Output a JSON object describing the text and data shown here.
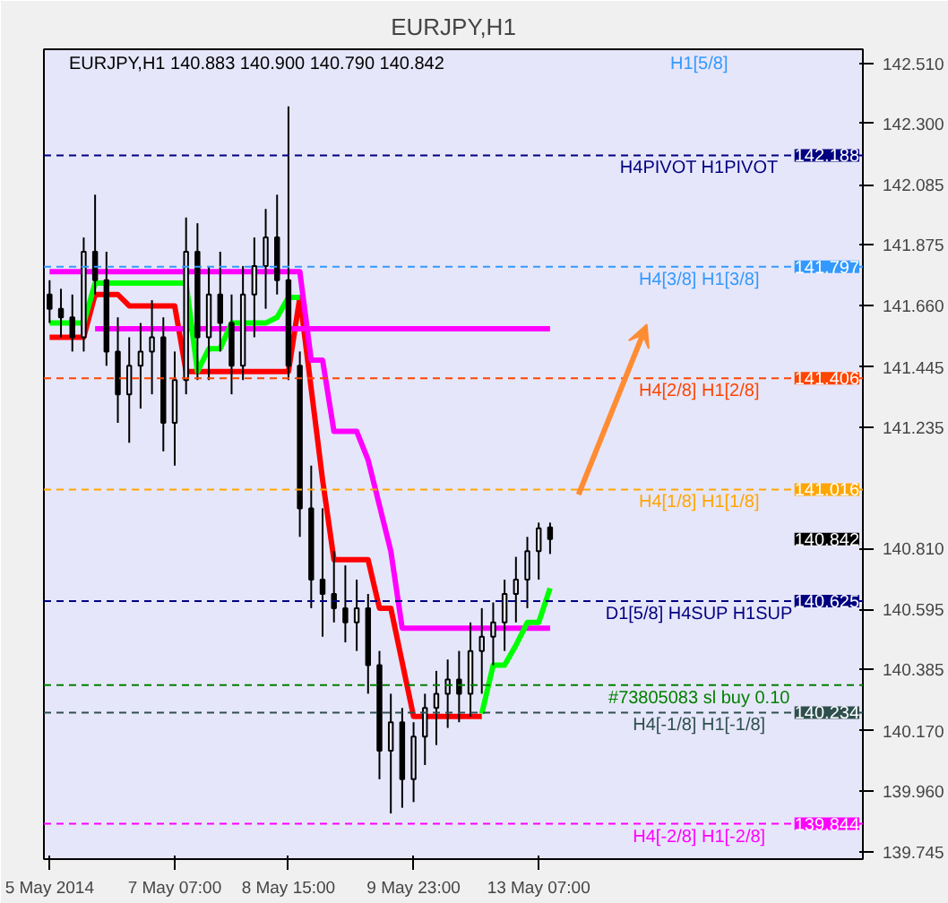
{
  "chart_data": {
    "type": "candlestick",
    "title": "EURJPY,H1",
    "subtitle": "EURJPY,H1  140.883 140.900 140.790 140.842",
    "categories": [
      "5 May 2014",
      null,
      null,
      null,
      null,
      null,
      null,
      null,
      null,
      null,
      null,
      "7 May 07:00",
      null,
      null,
      null,
      null,
      null,
      null,
      null,
      null,
      null,
      "8 May 15:00",
      null,
      null,
      null,
      null,
      null,
      null,
      null,
      null,
      null,
      null,
      "9 May 23:00",
      null,
      null,
      null,
      null,
      null,
      null,
      null,
      null,
      null,
      null,
      "13 May 07:00",
      null
    ],
    "ohlc": [
      [
        141.7,
        141.75,
        141.6,
        141.65
      ],
      [
        141.65,
        141.72,
        141.55,
        141.62
      ],
      [
        141.62,
        141.7,
        141.5,
        141.55
      ],
      [
        141.55,
        141.9,
        141.5,
        141.85
      ],
      [
        141.85,
        142.05,
        141.7,
        141.75
      ],
      [
        141.75,
        141.85,
        141.45,
        141.5
      ],
      [
        141.5,
        141.62,
        141.25,
        141.35
      ],
      [
        141.35,
        141.55,
        141.18,
        141.45
      ],
      [
        141.45,
        141.6,
        141.3,
        141.5
      ],
      [
        141.5,
        141.68,
        141.35,
        141.55
      ],
      [
        141.55,
        141.62,
        141.15,
        141.25
      ],
      [
        141.25,
        141.5,
        141.1,
        141.4
      ],
      [
        141.4,
        141.97,
        141.35,
        141.85
      ],
      [
        141.85,
        141.95,
        141.4,
        141.55
      ],
      [
        141.55,
        141.8,
        141.4,
        141.7
      ],
      [
        141.7,
        141.85,
        141.5,
        141.6
      ],
      [
        141.6,
        141.7,
        141.35,
        141.45
      ],
      [
        141.45,
        141.8,
        141.4,
        141.7
      ],
      [
        141.7,
        141.9,
        141.55,
        141.8
      ],
      [
        141.8,
        142.0,
        141.65,
        141.9
      ],
      [
        141.9,
        142.05,
        141.7,
        141.75
      ],
      [
        141.75,
        142.36,
        141.4,
        141.45
      ],
      [
        141.45,
        141.5,
        140.85,
        140.95
      ],
      [
        140.95,
        141.1,
        140.6,
        140.7
      ],
      [
        140.7,
        140.95,
        140.5,
        140.65
      ],
      [
        140.65,
        140.8,
        140.55,
        140.6
      ],
      [
        140.6,
        140.75,
        140.48,
        140.55
      ],
      [
        140.55,
        140.7,
        140.45,
        140.6
      ],
      [
        140.6,
        140.65,
        140.3,
        140.4
      ],
      [
        140.4,
        140.45,
        140.0,
        140.1
      ],
      [
        140.1,
        140.3,
        139.88,
        140.2
      ],
      [
        140.2,
        140.25,
        139.9,
        140.0
      ],
      [
        140.0,
        140.2,
        139.92,
        140.15
      ],
      [
        140.15,
        140.3,
        140.05,
        140.25
      ],
      [
        140.25,
        140.38,
        140.12,
        140.3
      ],
      [
        140.3,
        140.42,
        140.18,
        140.35
      ],
      [
        140.35,
        140.45,
        140.2,
        140.3
      ],
      [
        140.3,
        140.55,
        140.22,
        140.45
      ],
      [
        140.45,
        140.6,
        140.3,
        140.5
      ],
      [
        140.5,
        140.62,
        140.4,
        140.55
      ],
      [
        140.55,
        140.7,
        140.45,
        140.65
      ],
      [
        140.65,
        140.78,
        140.55,
        140.7
      ],
      [
        140.7,
        140.85,
        140.6,
        140.8
      ],
      [
        140.8,
        140.9,
        140.7,
        140.88
      ],
      [
        140.883,
        140.9,
        140.79,
        140.842
      ]
    ],
    "color": "#000000",
    "series": [
      {
        "type": "line",
        "color": "#ff0000",
        "values": [
          141.55,
          141.55,
          141.55,
          141.55,
          141.7,
          141.7,
          141.7,
          141.66,
          141.66,
          141.66,
          141.66,
          141.66,
          141.43,
          141.43,
          141.43,
          141.43,
          141.43,
          141.43,
          141.43,
          141.43,
          141.43,
          141.43,
          141.69,
          141.37,
          141.05,
          140.77,
          140.77,
          140.77,
          140.77,
          140.6,
          140.6,
          140.41,
          140.22,
          140.22,
          140.22,
          140.22,
          140.22,
          140.22,
          140.22,
          null,
          null,
          null,
          null,
          null,
          null
        ]
      },
      {
        "type": "line",
        "color": "#ff00ff",
        "values": [
          141.78,
          141.78,
          141.78,
          141.78,
          141.78,
          141.78,
          141.78,
          141.78,
          141.78,
          141.78,
          141.78,
          141.78,
          141.78,
          141.78,
          141.78,
          141.78,
          141.78,
          141.78,
          141.78,
          141.78,
          141.78,
          141.78,
          141.78,
          141.47,
          141.47,
          141.22,
          141.22,
          141.22,
          141.12,
          140.96,
          140.8,
          140.53,
          140.53,
          140.53,
          140.53,
          140.53,
          140.53,
          140.53,
          140.53,
          140.53,
          140.53,
          140.53,
          140.53,
          140.53,
          140.53
        ]
      },
      {
        "type": "line",
        "color": "#ff00ff",
        "values": [
          null,
          null,
          null,
          null,
          141.58,
          141.58,
          141.58,
          141.58,
          141.58,
          141.58,
          141.58,
          141.58,
          141.58,
          141.58,
          141.58,
          141.58,
          141.58,
          141.58,
          141.58,
          141.58,
          141.58,
          141.58,
          141.58,
          141.58,
          141.58,
          141.58,
          141.58,
          141.58,
          141.58,
          141.58,
          141.58,
          141.58,
          141.58,
          141.58,
          141.58,
          141.58,
          141.58,
          141.58,
          141.58,
          141.58,
          141.58,
          141.58,
          141.58,
          141.58,
          141.58
        ]
      },
      {
        "type": "line",
        "color": "#00ff00",
        "values": [
          141.6,
          141.6,
          141.6,
          141.6,
          141.74,
          141.74,
          141.74,
          141.74,
          141.74,
          141.74,
          141.74,
          141.74,
          141.74,
          141.43,
          141.51,
          141.51,
          141.6,
          141.6,
          141.6,
          141.6,
          141.62,
          141.69,
          141.69,
          null,
          null,
          null,
          null,
          null,
          null,
          null,
          null,
          null,
          null,
          null,
          null,
          null,
          null,
          null,
          140.23,
          140.4,
          140.4,
          140.47,
          140.55,
          140.55,
          140.67
        ]
      }
    ],
    "ref_lines": [
      {
        "axis": "y",
        "value": 142.188,
        "label": "H4PIVOT H1PIVOT",
        "color": "#000080",
        "line_style": "dashed"
      },
      {
        "axis": "y",
        "value": 141.797,
        "label": "H4[3/8] H1[3/8]",
        "color": "#3399ff",
        "line_style": "dashed"
      },
      {
        "axis": "y",
        "value": 141.406,
        "label": "H4[2/8] H1[2/8]",
        "color": "#ff4500",
        "line_style": "dashed"
      },
      {
        "axis": "y",
        "value": 141.016,
        "label": "H4[1/8] H1[1/8]",
        "color": "#ffa500",
        "line_style": "dashed"
      },
      {
        "axis": "y",
        "value": 140.625,
        "label": "D1[5/8] H4SUP H1SUP",
        "color": "#000080",
        "line_style": "dashed"
      },
      {
        "axis": "y",
        "value": 140.33,
        "label": "#73805083 sl buy 0.10",
        "color": "#008000",
        "line_style": "dashed"
      },
      {
        "axis": "y",
        "value": 140.234,
        "label": "H4[-1/8] H1[-1/8]",
        "color": "#2f4f4f",
        "line_style": "dashed"
      },
      {
        "axis": "y",
        "value": 139.844,
        "label": "H4[-2/8] H1[-2/8]",
        "color": "#ff00ff",
        "line_style": "dashed"
      }
    ],
    "annotations": [
      "H1[5/8]",
      "140.842",
      {
        "text": "142.188",
        "y": 142.188
      },
      {
        "text": "141.797",
        "y": 141.797
      },
      {
        "text": "141.406",
        "y": 141.406
      },
      {
        "text": "141.016",
        "y": 141.016
      },
      {
        "text": "140.625",
        "y": 140.625
      },
      {
        "text": "140.234",
        "y": 140.234
      },
      {
        "text": "139.844",
        "y": 139.844
      }
    ],
    "ylim": [
      139.72,
      142.56
    ],
    "yticks": [
      {
        "value": 142.51,
        "label": "142.510"
      },
      {
        "value": 142.3,
        "label": "142.300"
      },
      142.085,
      141.875,
      {
        "value": 141.66,
        "label": "141.660"
      },
      141.445,
      141.235,
      {
        "value": 140.81,
        "label": "140.810"
      },
      140.595,
      140.385,
      {
        "value": 140.17,
        "label": "140.170"
      },
      {
        "value": 139.96,
        "label": "139.960"
      },
      139.745
    ]
  }
}
